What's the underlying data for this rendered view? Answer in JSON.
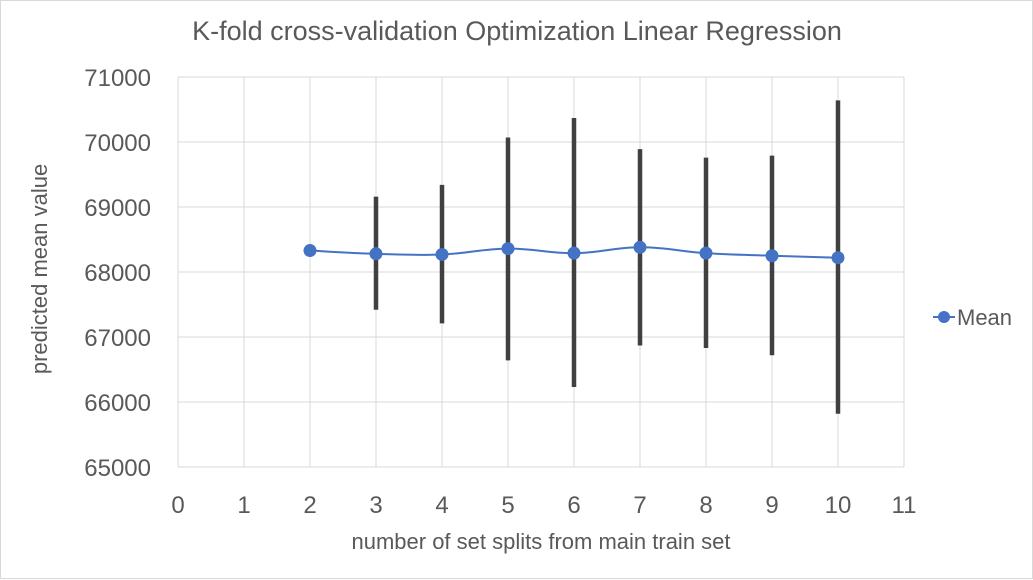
{
  "chart_data": {
    "type": "scatter",
    "title": "K-fold cross-validation Optimization Linear Regression",
    "xlabel": "number of set splits from main train set",
    "ylabel": "predicted mean value",
    "xlim": [
      0,
      11
    ],
    "ylim": [
      65000,
      71000
    ],
    "x_ticks": [
      0,
      1,
      2,
      3,
      4,
      5,
      6,
      7,
      8,
      9,
      10,
      11
    ],
    "y_ticks": [
      65000,
      66000,
      67000,
      68000,
      69000,
      70000,
      71000
    ],
    "grid": true,
    "legend_position": "right",
    "series": [
      {
        "name": "Mean",
        "color": "#4472c4",
        "line": "smooth",
        "marker": "circle",
        "x": [
          2,
          3,
          4,
          5,
          6,
          7,
          8,
          9,
          10
        ],
        "y": [
          68330,
          68280,
          68270,
          68360,
          68290,
          68380,
          68290,
          68250,
          68220
        ],
        "error_low": [
          null,
          67420,
          67210,
          66640,
          66230,
          66870,
          66830,
          66720,
          65820
        ],
        "error_high": [
          null,
          69160,
          69340,
          70070,
          70370,
          69890,
          69760,
          69790,
          70640
        ]
      }
    ],
    "error_bar_color": "#404040"
  }
}
